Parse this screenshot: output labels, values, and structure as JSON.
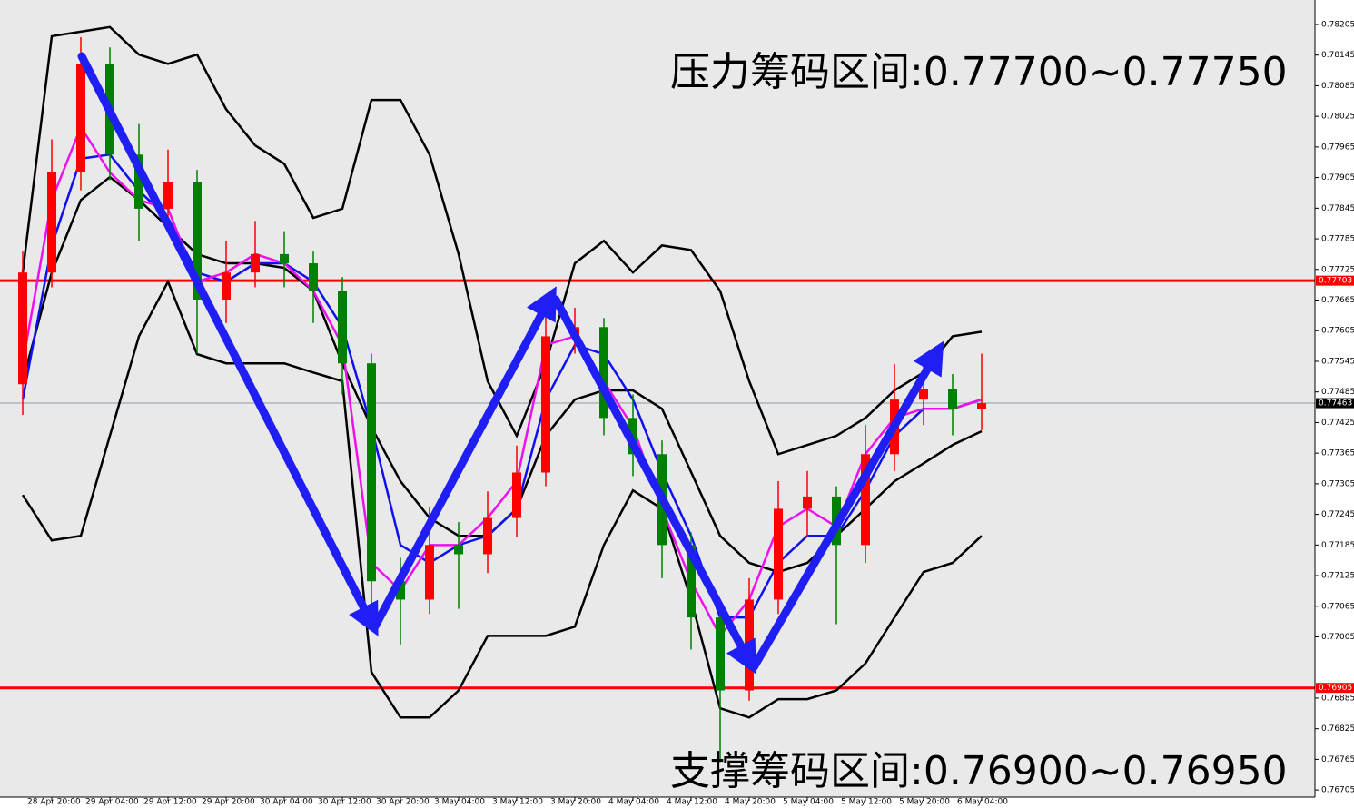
{
  "chart_data": {
    "type": "candlestick",
    "categories": [
      null,
      "28 Apr 20:00",
      null,
      "29 Apr 04:00",
      null,
      "29 Apr 12:00",
      null,
      "29 Apr 20:00",
      null,
      "30 Apr 04:00",
      null,
      "30 Apr 12:00",
      null,
      "30 Apr 20:00",
      null,
      "3 May 04:00",
      null,
      "3 May 12:00",
      null,
      "3 May 20:00",
      null,
      "4 May 04:00",
      null,
      "4 May 12:00",
      null,
      "4 May 20:00",
      null,
      "5 May 04:00",
      null,
      "5 May 12:00",
      null,
      "5 May 20:00",
      null,
      "6 May 04:00"
    ],
    "open": [
      0.775,
      0.77719,
      0.77915,
      0.78128,
      0.7795,
      0.77844,
      0.77897,
      0.77666,
      0.77719,
      0.77755,
      0.77737,
      0.77683,
      0.77541,
      0.77114,
      0.77078,
      0.77185,
      0.77167,
      0.77238,
      0.77327,
      0.77594,
      0.77612,
      0.77434,
      0.77363,
      0.77185,
      0.77043,
      0.769,
      0.77078,
      0.77256,
      0.7728,
      0.77185,
      0.77363,
      0.7747,
      0.7749,
      0.77452
    ],
    "high": [
      0.7776,
      0.7798,
      0.7818,
      0.7816,
      0.7801,
      0.7796,
      0.7792,
      0.7778,
      0.7782,
      0.778,
      0.7776,
      0.7771,
      0.7756,
      0.7716,
      0.7726,
      0.7723,
      0.7729,
      0.7738,
      0.7766,
      0.7765,
      0.7763,
      0.7748,
      0.7739,
      0.7721,
      0.7707,
      0.7712,
      0.7731,
      0.7733,
      0.773,
      0.7742,
      0.7754,
      0.7754,
      0.7752,
      0.7756
    ],
    "low": [
      0.7744,
      0.7769,
      0.7788,
      0.779,
      0.7778,
      0.778,
      0.7756,
      0.7762,
      0.7769,
      0.7769,
      0.7762,
      0.7748,
      0.7706,
      0.7699,
      0.7705,
      0.7706,
      0.7713,
      0.772,
      0.773,
      0.7756,
      0.774,
      0.7732,
      0.7712,
      0.7698,
      0.7676,
      0.7688,
      0.7705,
      0.772,
      0.7703,
      0.7715,
      0.7733,
      0.7742,
      0.774,
      0.7741
    ],
    "close": [
      0.77719,
      0.77915,
      0.78128,
      0.7795,
      0.77844,
      0.77897,
      0.77666,
      0.77719,
      0.77755,
      0.77737,
      0.77683,
      0.77541,
      0.77114,
      0.77078,
      0.77185,
      0.77167,
      0.77238,
      0.77327,
      0.77594,
      0.77612,
      0.77434,
      0.77363,
      0.77185,
      0.77043,
      0.769,
      0.77078,
      0.77256,
      0.7728,
      0.77185,
      0.77363,
      0.7747,
      0.7749,
      0.77452,
      0.77463
    ],
    "up_color": "#ff0000",
    "down_color": "#008000",
    "overlays": [
      {
        "color": "#000000",
        "values": [
          0.77719,
          0.78182,
          0.78191,
          0.782,
          0.78146,
          0.78128,
          0.78146,
          0.78039,
          0.77968,
          0.77932,
          0.77826,
          0.77844,
          0.78057,
          0.78057,
          0.7795,
          0.77755,
          0.77506,
          0.77399,
          0.77541,
          0.77737,
          0.77781,
          0.77719,
          0.77772,
          0.77763,
          0.77683,
          0.77506,
          0.77363,
          0.77381,
          0.77399,
          0.77434,
          0.77488,
          0.77523,
          0.77594,
          0.77603
        ]
      },
      {
        "color": "#000000",
        "values": [
          0.77506,
          0.77719,
          0.77861,
          0.77906,
          0.77861,
          0.77808,
          0.77755,
          0.77737,
          0.77737,
          0.77728,
          0.77683,
          0.77541,
          0.77416,
          0.7731,
          0.77238,
          0.77203,
          0.77203,
          0.77256,
          0.77399,
          0.7747,
          0.77488,
          0.77488,
          0.77452,
          0.77328,
          0.77203,
          0.7715,
          0.77132,
          0.7715,
          0.77203,
          0.77256,
          0.7731,
          0.77345,
          0.77381,
          0.77408
        ]
      },
      {
        "color": "#000000",
        "values": [
          0.77283,
          0.77194,
          0.77203,
          0.77399,
          0.77594,
          0.77701,
          0.77559,
          0.77541,
          0.77541,
          0.77541,
          0.77523,
          0.77506,
          0.76936,
          0.76847,
          0.76847,
          0.769,
          0.77007,
          0.77007,
          0.77007,
          0.77025,
          0.77185,
          0.77292,
          0.77256,
          0.77078,
          0.76865,
          0.76847,
          0.76883,
          0.76883,
          0.769,
          0.76953,
          0.77043,
          0.77132,
          0.7715,
          0.77203
        ]
      },
      {
        "color": "#1010ee",
        "values": [
          0.7747,
          0.77772,
          0.77942,
          0.7795,
          0.77879,
          0.77826,
          0.77719,
          0.77701,
          0.77737,
          0.77737,
          0.77701,
          0.77612,
          0.77416,
          0.77185,
          0.7715,
          0.77185,
          0.77203,
          0.77256,
          0.7747,
          0.77577,
          0.77559,
          0.7747,
          0.77328,
          0.77203,
          0.77043,
          0.77043,
          0.7715,
          0.77203,
          0.77203,
          0.77292,
          0.77399,
          0.77452,
          0.77452,
          0.7747
        ]
      },
      {
        "color": "#ee10ee",
        "values": [
          0.77541,
          0.77861,
          0.78004,
          0.77915,
          0.77861,
          0.77844,
          0.77701,
          0.77719,
          0.77755,
          0.77737,
          0.77683,
          0.77577,
          0.7715,
          0.77096,
          0.77185,
          0.77185,
          0.77238,
          0.7731,
          0.77577,
          0.77594,
          0.77506,
          0.77416,
          0.77256,
          0.77114,
          0.77007,
          0.77078,
          0.77221,
          0.77256,
          0.77221,
          0.77363,
          0.77434,
          0.77452,
          0.77452,
          0.7747
        ]
      }
    ],
    "levels": [
      {
        "value": 0.77703,
        "color": "#ff0000"
      },
      {
        "value": 0.76905,
        "color": "#ff0000"
      }
    ],
    "last_price": 0.77463,
    "ylim": [
      0.76691,
      0.78253
    ],
    "yticks": [
      0.78205,
      0.78145,
      0.78085,
      0.78025,
      0.77965,
      0.77905,
      0.77845,
      0.77785,
      0.77725,
      0.77665,
      0.77605,
      0.77545,
      0.77485,
      0.77425,
      0.77365,
      0.77305,
      0.77245,
      0.77185,
      0.77125,
      0.77065,
      0.77005,
      0.76885,
      0.76825,
      0.76765,
      0.76705
    ],
    "annotations": [
      "压力筹码区间:0.77700~0.77750",
      "支撑筹码区间:0.76900~0.76950"
    ]
  }
}
